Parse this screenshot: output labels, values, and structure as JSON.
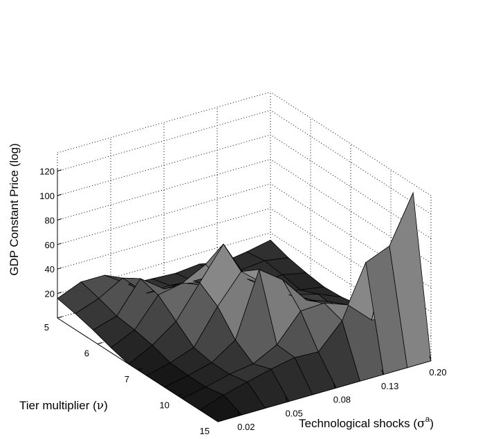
{
  "chart_data": {
    "type": "surface",
    "title": "",
    "zlabel": "GDP Constant Price (log)",
    "ylabel_text": "Tier multiplier (",
    "ylabel_symbol": "ν",
    "ylabel_close": ")",
    "xlabel_text": "Technological shocks (",
    "xlabel_symbol": "σ",
    "xlabel_sup": "a",
    "xlabel_close": ")",
    "x_ticks": [
      "0.02",
      "0.05",
      "0.08",
      "0.13",
      "0.20"
    ],
    "y_ticks": [
      "5",
      "6",
      "7",
      "10",
      "15"
    ],
    "z_ticks": [
      "20",
      "40",
      "60",
      "80",
      "100",
      "120"
    ],
    "zlim": [
      0,
      120
    ],
    "grid": true,
    "colormap": "gray",
    "x_columns": 10,
    "y_rows": 10,
    "z_values": [
      [
        16,
        24,
        24,
        11,
        10,
        9,
        11,
        7,
        10,
        14
      ],
      [
        13,
        20,
        31,
        13,
        14,
        12,
        12,
        10,
        12,
        9
      ],
      [
        9,
        15,
        40,
        26,
        25,
        17,
        11,
        9,
        10,
        6
      ],
      [
        4,
        13,
        36,
        40,
        50,
        24,
        13,
        10,
        7,
        4
      ],
      [
        0,
        10,
        24,
        50,
        76,
        42,
        27,
        18,
        13,
        5
      ],
      [
        0,
        5,
        12,
        40,
        63,
        47,
        33,
        23,
        11,
        8
      ],
      [
        0,
        4,
        9,
        22,
        74,
        60,
        38,
        31,
        12,
        12
      ],
      [
        0,
        4,
        9,
        12,
        22,
        44,
        45,
        38,
        20,
        17
      ],
      [
        0,
        7,
        12,
        17,
        21,
        20,
        40,
        82,
        90,
        128
      ],
      [
        0,
        0,
        0,
        0,
        0,
        0,
        0,
        0,
        0,
        0
      ]
    ]
  }
}
